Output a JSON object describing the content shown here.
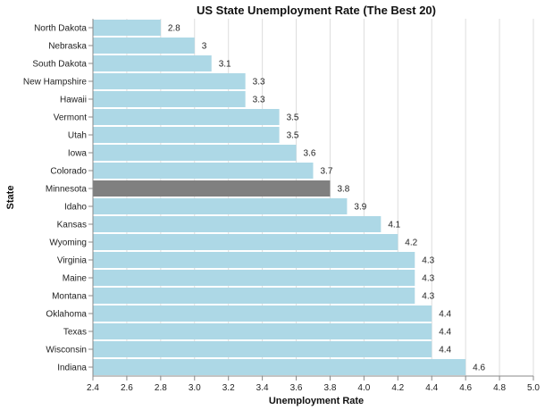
{
  "chart_data": {
    "type": "bar",
    "orientation": "horizontal",
    "title": "US State Unemployment Rate (The Best 20)",
    "xlabel": "Unemployment Rate",
    "ylabel": "State",
    "xlim": [
      2.4,
      5.0
    ],
    "xticks": [
      "2.4",
      "2.6",
      "2.8",
      "3.0",
      "3.2",
      "3.4",
      "3.6",
      "3.8",
      "4.0",
      "4.2",
      "4.4",
      "4.6",
      "4.8",
      "5.0"
    ],
    "grid": true,
    "bar_color": "#add8e6",
    "highlight_color": "#808080",
    "highlight_category": "Minnesota",
    "categories": [
      "North Dakota",
      "Nebraska",
      "South Dakota",
      "New Hampshire",
      "Hawaii",
      "Vermont",
      "Utah",
      "Iowa",
      "Colorado",
      "Minnesota",
      "Idaho",
      "Kansas",
      "Wyoming",
      "Virginia",
      "Maine",
      "Montana",
      "Oklahoma",
      "Texas",
      "Wisconsin",
      "Indiana"
    ],
    "values": [
      2.8,
      3,
      3.1,
      3.3,
      3.3,
      3.5,
      3.5,
      3.6,
      3.7,
      3.8,
      3.9,
      4.1,
      4.2,
      4.3,
      4.3,
      4.3,
      4.4,
      4.4,
      4.4,
      4.6
    ],
    "value_labels": [
      "2.8",
      "3",
      "3.1",
      "3.3",
      "3.3",
      "3.5",
      "3.5",
      "3.6",
      "3.7",
      "3.8",
      "3.9",
      "4.1",
      "4.2",
      "4.3",
      "4.3",
      "4.3",
      "4.4",
      "4.4",
      "4.4",
      "4.6"
    ]
  }
}
